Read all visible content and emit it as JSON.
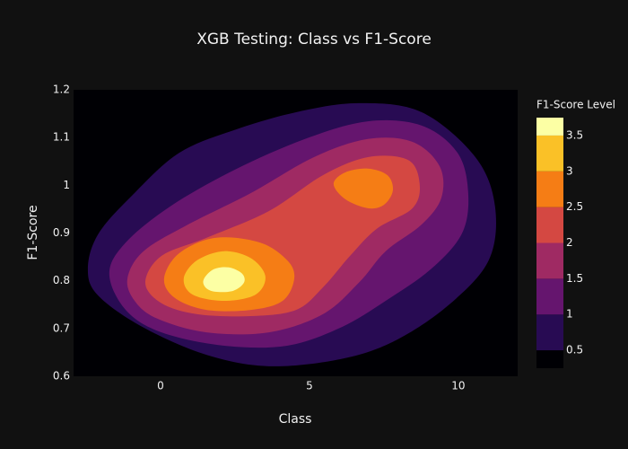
{
  "chart_data": {
    "type": "contour",
    "title": "XGB Testing: Class vs F1-Score",
    "x_label": "Class",
    "y_label": "F1-Score",
    "xlim": [
      -2.92,
      11.99
    ],
    "xticks": [
      0,
      5,
      10
    ],
    "ylim": [
      0.6,
      1.2
    ],
    "yticks": [
      0.6,
      0.7,
      0.8,
      0.9,
      1,
      1.1,
      1.2
    ],
    "colorbar": {
      "title": "F1-Score Level",
      "lim": [
        0.25,
        3.75
      ],
      "ticks": [
        0.5,
        1,
        1.5,
        2,
        2.5,
        3,
        3.5
      ],
      "colors": [
        "#000004",
        "#280b53",
        "#65156e",
        "#9f2a63",
        "#d44842",
        "#f57d15",
        "#fac127",
        "#fcffa4"
      ]
    },
    "contours": [
      {
        "level": 0.5,
        "x": [
          -2.44,
          -2.08,
          -0.87,
          0.63,
          2.44,
          4.55,
          6.66,
          8.77,
          10.57,
          11.23,
          11.02,
          9.67,
          7.86,
          6.05,
          3.64,
          1.54,
          -0.57,
          -2.08
        ],
        "y": [
          0.824,
          0.899,
          0.984,
          1.068,
          1.115,
          1.153,
          1.172,
          1.153,
          1.059,
          0.956,
          0.843,
          0.749,
          0.674,
          0.636,
          0.621,
          0.645,
          0.702,
          0.768
        ]
      },
      {
        "level": 1,
        "x": [
          -1.72,
          -1.17,
          0.33,
          2.44,
          4.85,
          6.96,
          8.77,
          9.97,
          10.33,
          10.12,
          9.07,
          7.56,
          6.05,
          4.25,
          2.14,
          0.03,
          -1.17
        ],
        "y": [
          0.815,
          0.88,
          0.956,
          1.031,
          1.097,
          1.134,
          1.125,
          1.068,
          0.984,
          0.899,
          0.824,
          0.758,
          0.702,
          0.664,
          0.664,
          0.692,
          0.739
        ]
      },
      {
        "level": 1.5,
        "x": [
          -1.11,
          -0.57,
          0.93,
          3.04,
          5.15,
          6.96,
          8.46,
          9.37,
          9.43,
          8.77,
          7.56,
          6.66,
          5.45,
          3.64,
          1.54,
          -0.12,
          -0.87
        ],
        "y": [
          0.805,
          0.862,
          0.918,
          0.984,
          1.059,
          1.097,
          1.091,
          1.04,
          0.974,
          0.918,
          0.862,
          0.796,
          0.73,
          0.692,
          0.692,
          0.721,
          0.758
        ]
      },
      {
        "level": 2,
        "x": [
          -0.51,
          0.03,
          1.54,
          3.64,
          5.45,
          6.96,
          8.31,
          8.7,
          8.46,
          7.26,
          6.36,
          5.45,
          4.55,
          3.04,
          1.23,
          0.03
        ],
        "y": [
          0.796,
          0.852,
          0.89,
          0.946,
          1.021,
          1.059,
          1.053,
          1.003,
          0.952,
          0.909,
          0.852,
          0.786,
          0.739,
          0.726,
          0.73,
          0.753
        ]
      },
      {
        "level": 2.5,
        "x": [
          0.12,
          0.63,
          1.84,
          3.34,
          4.25,
          4.49,
          4.1,
          3.04,
          1.54,
          0.48
        ],
        "y": [
          0.805,
          0.858,
          0.89,
          0.88,
          0.843,
          0.805,
          0.758,
          0.739,
          0.739,
          0.764
        ]
      },
      {
        "level": 2.5,
        "x": [
          5.81,
          6.2,
          6.96,
          7.62,
          7.8,
          7.5,
          6.96,
          6.2
        ],
        "y": [
          1.003,
          1.027,
          1.035,
          1.021,
          0.989,
          0.959,
          0.952,
          0.971
        ]
      },
      {
        "level": 3,
        "x": [
          0.78,
          1.23,
          2.14,
          3.04,
          3.52,
          3.19,
          2.14,
          1.08
        ],
        "y": [
          0.805,
          0.843,
          0.862,
          0.847,
          0.809,
          0.771,
          0.758,
          0.771
        ]
      },
      {
        "level": 3.5,
        "x": [
          1.45,
          1.78,
          2.29,
          2.74,
          2.8,
          2.44,
          1.84,
          1.51
        ],
        "y": [
          0.803,
          0.824,
          0.828,
          0.815,
          0.796,
          0.779,
          0.777,
          0.786
        ]
      }
    ]
  }
}
